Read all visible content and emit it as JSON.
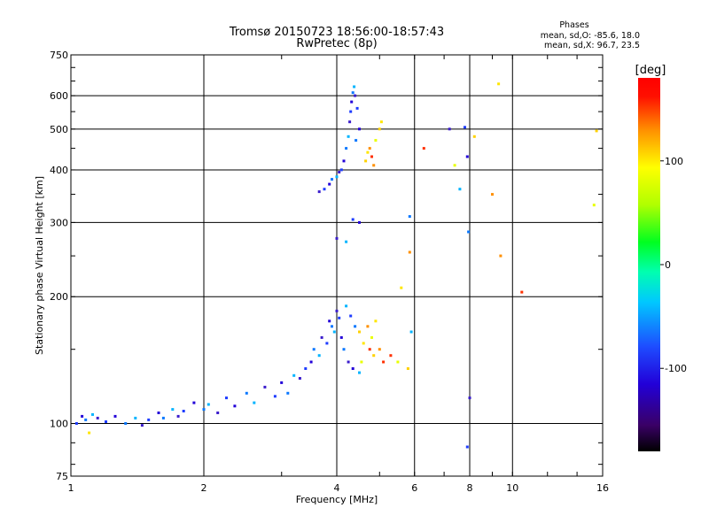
{
  "header": {
    "title_line1": "Tromsø 20150723 18:56:00-18:57:43",
    "title_line2": "RwPretec (8p)",
    "stats_heading": "Phases",
    "stats_line1": "mean, sd,O: -85.6, 18.0",
    "stats_line2": "mean, sd,X:  96.7, 23.5"
  },
  "chart_data": {
    "type": "scatter",
    "title": "Tromsø 20150723 18:56:00-18:57:43",
    "subtitle": "RwPretec (8p)",
    "xlabel": "Frequency [MHz]",
    "ylabel": "Stationary phase Virtual Height [km]",
    "x_scale": "log",
    "y_scale": "log",
    "xlim": [
      1,
      16
    ],
    "ylim": [
      75,
      750
    ],
    "x_ticks": [
      1,
      2,
      4,
      6,
      8,
      10,
      16
    ],
    "x_tick_labels": [
      "1",
      "2",
      "4",
      "6",
      "8",
      "10",
      "16"
    ],
    "y_ticks": [
      75,
      100,
      200,
      300,
      400,
      500,
      600,
      750
    ],
    "y_tick_labels": [
      "75",
      "100",
      "200",
      "300",
      "400",
      "500",
      "600",
      "750"
    ],
    "grid": true,
    "colorbar": {
      "label": "[deg]",
      "range": [
        -180,
        180
      ],
      "ticks": [
        100,
        0,
        -100
      ],
      "tick_labels": [
        "100",
        "0",
        "-100"
      ]
    },
    "series": [
      {
        "mode": "O",
        "points": [
          [
            1.03,
            100
          ],
          [
            1.06,
            104
          ],
          [
            1.08,
            102
          ],
          [
            1.12,
            105
          ],
          [
            1.15,
            103
          ],
          [
            1.2,
            101
          ],
          [
            1.26,
            104
          ],
          [
            1.33,
            100
          ],
          [
            1.4,
            103
          ],
          [
            1.45,
            99
          ],
          [
            1.5,
            102
          ],
          [
            1.58,
            106
          ],
          [
            1.62,
            103
          ],
          [
            1.7,
            108
          ],
          [
            1.75,
            104
          ],
          [
            1.8,
            107
          ],
          [
            1.9,
            112
          ],
          [
            2.0,
            108
          ],
          [
            2.05,
            111
          ],
          [
            2.15,
            106
          ],
          [
            2.25,
            115
          ],
          [
            2.35,
            110
          ],
          [
            2.5,
            118
          ],
          [
            2.6,
            112
          ],
          [
            2.75,
            122
          ],
          [
            2.9,
            116
          ],
          [
            3.0,
            125
          ],
          [
            3.1,
            118
          ],
          [
            3.2,
            130
          ],
          [
            3.3,
            128
          ],
          [
            3.4,
            135
          ],
          [
            3.5,
            140
          ],
          [
            3.55,
            150
          ],
          [
            3.65,
            145
          ],
          [
            3.7,
            160
          ],
          [
            3.8,
            155
          ],
          [
            3.85,
            175
          ],
          [
            3.9,
            170
          ],
          [
            3.95,
            165
          ],
          [
            4.0,
            185
          ],
          [
            4.05,
            178
          ],
          [
            4.1,
            160
          ],
          [
            4.15,
            150
          ],
          [
            4.2,
            190
          ],
          [
            4.25,
            140
          ],
          [
            4.3,
            180
          ],
          [
            4.35,
            135
          ],
          [
            4.4,
            170
          ],
          [
            4.5,
            132
          ],
          [
            3.65,
            355
          ],
          [
            3.75,
            360
          ],
          [
            3.85,
            370
          ],
          [
            3.9,
            380
          ],
          [
            4.0,
            385
          ],
          [
            4.05,
            395
          ],
          [
            4.1,
            400
          ],
          [
            4.15,
            420
          ],
          [
            4.2,
            450
          ],
          [
            4.25,
            480
          ],
          [
            4.28,
            520
          ],
          [
            4.3,
            550
          ],
          [
            4.32,
            580
          ],
          [
            4.35,
            610
          ],
          [
            4.38,
            630
          ],
          [
            4.4,
            600
          ],
          [
            4.45,
            560
          ],
          [
            4.5,
            500
          ],
          [
            4.42,
            470
          ],
          [
            4.2,
            270
          ],
          [
            4.0,
            275
          ],
          [
            4.35,
            305
          ],
          [
            4.5,
            300
          ],
          [
            5.85,
            310
          ],
          [
            5.9,
            165
          ],
          [
            7.2,
            500
          ],
          [
            7.8,
            505
          ],
          [
            7.9,
            430
          ],
          [
            7.95,
            285
          ],
          [
            7.6,
            360
          ],
          [
            8.0,
            115
          ],
          [
            7.9,
            88
          ]
        ]
      },
      {
        "mode": "X",
        "points": [
          [
            4.5,
            165
          ],
          [
            4.6,
            155
          ],
          [
            4.7,
            170
          ],
          [
            4.75,
            150
          ],
          [
            4.8,
            160
          ],
          [
            4.85,
            145
          ],
          [
            4.9,
            175
          ],
          [
            5.0,
            150
          ],
          [
            5.1,
            140
          ],
          [
            4.55,
            140
          ],
          [
            4.65,
            420
          ],
          [
            4.7,
            440
          ],
          [
            4.75,
            450
          ],
          [
            4.8,
            430
          ],
          [
            4.9,
            470
          ],
          [
            5.0,
            500
          ],
          [
            5.05,
            520
          ],
          [
            4.85,
            410
          ],
          [
            5.3,
            145
          ],
          [
            5.5,
            140
          ],
          [
            5.8,
            135
          ],
          [
            5.6,
            210
          ],
          [
            5.85,
            255
          ],
          [
            6.3,
            450
          ],
          [
            7.4,
            410
          ],
          [
            8.2,
            480
          ],
          [
            9.3,
            640
          ],
          [
            9.0,
            350
          ],
          [
            10.5,
            205
          ],
          [
            15.3,
            330
          ],
          [
            15.5,
            495
          ],
          [
            1.1,
            95
          ],
          [
            9.4,
            250
          ]
        ]
      }
    ]
  }
}
